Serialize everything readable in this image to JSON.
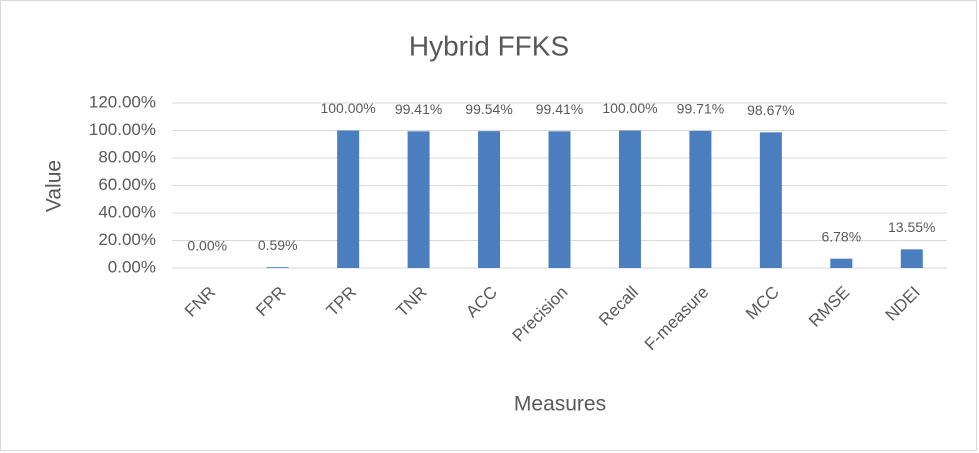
{
  "chart_data": {
    "type": "bar",
    "title": "Hybrid FFKS",
    "x_label": "Measures",
    "y_label": "Value",
    "categories": [
      "FNR",
      "FPR",
      "TPR",
      "TNR",
      "ACC",
      "Precision",
      "Recall",
      "F-measure",
      "MCC",
      "RMSE",
      "NDEI"
    ],
    "values": [
      0,
      0.59,
      100,
      99.41,
      99.54,
      99.41,
      100,
      99.71,
      98.67,
      6.78,
      13.55
    ],
    "value_labels": [
      "0.00%",
      "0.59%",
      "100.00%",
      "99.41%",
      "99.54%",
      "99.41%",
      "100.00%",
      "99.71%",
      "98.67%",
      "6.78%",
      "13.55%"
    ],
    "color": "#4a7ebf",
    "ylim": [
      0,
      120
    ],
    "yticks": [
      {
        "value": 0,
        "label": "0.00%"
      },
      {
        "value": 20,
        "label": "20.00%"
      },
      {
        "value": 40,
        "label": "40.00%"
      },
      {
        "value": 60,
        "label": "60.00%"
      },
      {
        "value": 80,
        "label": "80.00%"
      },
      {
        "value": 100,
        "label": "100.00%"
      },
      {
        "value": 120,
        "label": "120.00%"
      }
    ],
    "grid": true
  }
}
